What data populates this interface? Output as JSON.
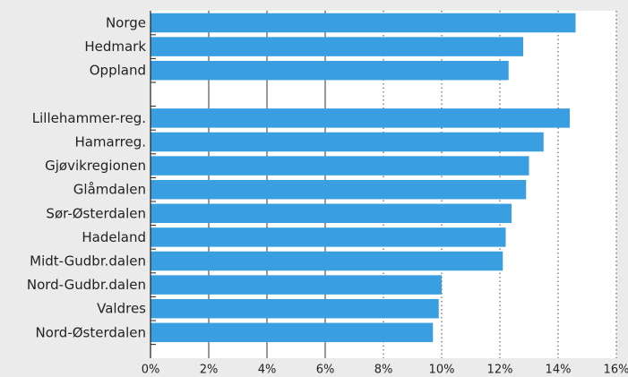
{
  "chart_data": {
    "type": "bar",
    "orientation": "horizontal",
    "title": "",
    "xlabel": "",
    "ylabel": "",
    "xlim": [
      0,
      16
    ],
    "x_ticks": [
      "0%",
      "2%",
      "4%",
      "6%",
      "8%",
      "10%",
      "12%",
      "14%",
      "16%"
    ],
    "x_tick_values": [
      0,
      2,
      4,
      6,
      8,
      10,
      12,
      14,
      16
    ],
    "grid": true,
    "legend": "none",
    "bar_color": "#3a9fe0",
    "categories": [
      "Norge",
      "Hedmark",
      "Oppland",
      "",
      "Lillehammer-reg.",
      "Hamarreg.",
      "Gjøvikregionen",
      "Glåmdalen",
      "Sør-Østerdalen",
      "Hadeland",
      "Midt-Gudbr.dalen",
      "Nord-Gudbr.dalen",
      "Valdres",
      "Nord-Østerdalen"
    ],
    "values": [
      14.6,
      12.8,
      12.3,
      null,
      14.4,
      13.5,
      13.0,
      12.9,
      12.4,
      12.2,
      12.1,
      10.0,
      9.9,
      9.7
    ]
  }
}
